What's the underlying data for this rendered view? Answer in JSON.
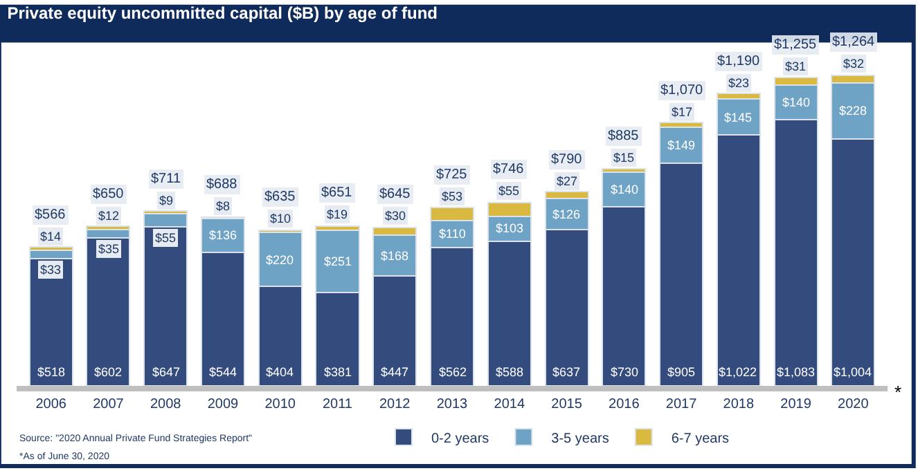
{
  "chart_data": {
    "type": "bar",
    "stacked": true,
    "title": "Private equity uncommitted capital ($B) by age of fund",
    "categories": [
      "2006",
      "2007",
      "2008",
      "2009",
      "2010",
      "2011",
      "2012",
      "2013",
      "2014",
      "2015",
      "2016",
      "2017",
      "2018",
      "2019",
      "2020"
    ],
    "series": [
      {
        "name": "0-2 years",
        "color": "#334b7d",
        "values": [
          518,
          602,
          647,
          544,
          404,
          381,
          447,
          562,
          588,
          637,
          730,
          905,
          1022,
          1083,
          1004
        ],
        "value_labels": [
          "$518",
          "$602",
          "$647",
          "$544",
          "$404",
          "$381",
          "$447",
          "$562",
          "$588",
          "$637",
          "$730",
          "$905",
          "$1,022",
          "$1,083",
          "$1,004"
        ]
      },
      {
        "name": "3-5 years",
        "color": "#6fa3c6",
        "values": [
          33,
          35,
          55,
          136,
          220,
          251,
          168,
          110,
          103,
          126,
          140,
          149,
          145,
          140,
          228
        ],
        "value_labels": [
          "$33",
          "$35",
          "$55",
          "$136",
          "$220",
          "$251",
          "$168",
          "$110",
          "$103",
          "$126",
          "$140",
          "$149",
          "$145",
          "$140",
          "$228"
        ]
      },
      {
        "name": "6-7 years",
        "color": "#d9b940",
        "values": [
          14,
          12,
          9,
          8,
          10,
          19,
          30,
          53,
          55,
          27,
          15,
          17,
          23,
          31,
          32
        ],
        "value_labels": [
          "$14",
          "$12",
          "$9",
          "$8",
          "$10",
          "$19",
          "$30",
          "$53",
          "$55",
          "$27",
          "$15",
          "$17",
          "$23",
          "$31",
          "$32"
        ]
      }
    ],
    "totals": [
      "$566",
      "$650",
      "$711",
      "$688",
      "$635",
      "$651",
      "$645",
      "$725",
      "$746",
      "$790",
      "$885",
      "$1,070",
      "$1,190",
      "$1,255",
      "$1,264"
    ],
    "annotations": [
      "Source: \"2020 Annual Private Fund Strategies Report\"",
      "*As of June 30, 2020",
      "*"
    ],
    "legend": "bottom"
  }
}
